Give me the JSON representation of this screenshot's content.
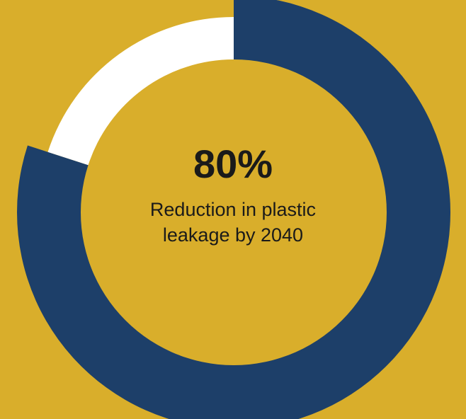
{
  "chart_data": {
    "type": "pie",
    "value_label": "80%",
    "caption": "Reduction in plastic leakage by 2040",
    "slices": [
      {
        "name": "",
        "value": 80,
        "color": "#1D3F69"
      },
      {
        "name": "",
        "value": 20,
        "color": "#FFFFFF"
      }
    ]
  },
  "colors": {
    "background": "#D9AE2B",
    "primary": "#1D3F69",
    "remainder": "#FFFFFF"
  }
}
